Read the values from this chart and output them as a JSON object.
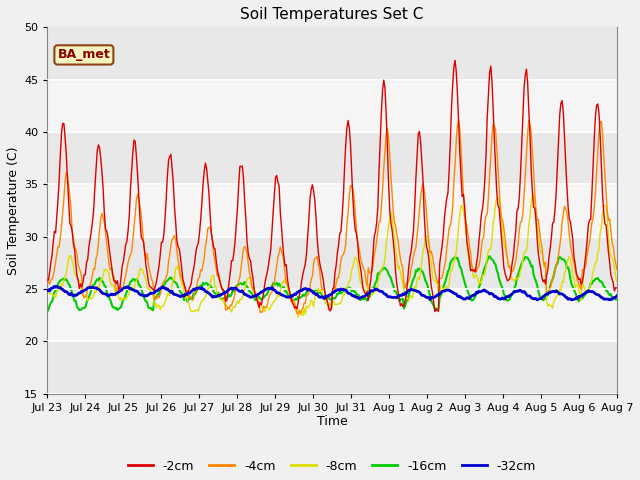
{
  "title": "Soil Temperatures Set C",
  "xlabel": "Time",
  "ylabel": "Soil Temperature (C)",
  "ylim": [
    15,
    50
  ],
  "yticks": [
    15,
    20,
    25,
    30,
    35,
    40,
    45,
    50
  ],
  "annotation": "BA_met",
  "bg_color": "#f0f0f0",
  "plot_bg_color": "#ffffff",
  "series": {
    "-2cm": {
      "color": "#dd0000",
      "lw": 1.0
    },
    "-4cm": {
      "color": "#ff8800",
      "lw": 1.0
    },
    "-8cm": {
      "color": "#dddd00",
      "lw": 1.0
    },
    "-16cm": {
      "color": "#00cc00",
      "lw": 1.5
    },
    "-32cm": {
      "color": "#0000cc",
      "lw": 2.0
    }
  },
  "x_tick_labels": [
    "Jul 23",
    "Jul 24",
    "Jul 25",
    "Jul 26",
    "Jul 27",
    "Jul 28",
    "Jul 29",
    "Jul 30",
    "Jul 31",
    "Aug 1",
    "Aug 2",
    "Aug 3",
    "Aug 4",
    "Aug 5",
    "Aug 6",
    "Aug 7"
  ],
  "band_colors": [
    "#e8e8e8",
    "#d8d8d8"
  ],
  "n_points": 480
}
